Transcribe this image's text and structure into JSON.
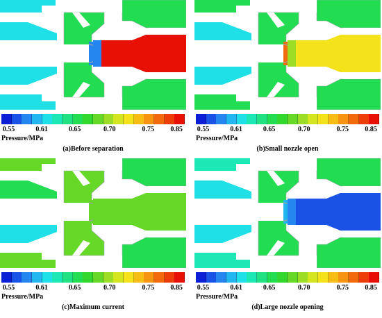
{
  "colors": {
    "background": "#ffffff",
    "outline": "#9aa0a6",
    "colorbar": [
      "#0d1fd6",
      "#1a52e6",
      "#2486ee",
      "#22b7f0",
      "#1ee0e6",
      "#1be8b4",
      "#20e283",
      "#22dd52",
      "#33d82e",
      "#66d828",
      "#9ddd25",
      "#d5e51f",
      "#f4e31a",
      "#f8bd14",
      "#f79410",
      "#f36a0c",
      "#ee3d08",
      "#e81005"
    ]
  },
  "colorbar": {
    "ticks": [
      {
        "label": "0.55",
        "frac": 0.04
      },
      {
        "label": "0.61",
        "frac": 0.22
      },
      {
        "label": "0.65",
        "frac": 0.4
      },
      {
        "label": "0.70",
        "frac": 0.59
      },
      {
        "label": "0.75",
        "frac": 0.8
      },
      {
        "label": "0.85",
        "frac": 0.955
      }
    ],
    "unit_label": "Pressure/MPa"
  },
  "panels": [
    {
      "caption": "(a)Before separation",
      "fields": {
        "bg": "#20e283",
        "tube": "#ffffff",
        "upper": "#1ee0e6",
        "lower": "#1ee0e6",
        "body": "#22dd52",
        "throat": "#2486ee",
        "outlet_main": "#e81005",
        "outlet_ring": "#2486ee",
        "right_blocks": "#22dd52",
        "left_blocks": "#1ee0e6"
      }
    },
    {
      "caption": "(b)Small nozzle open",
      "fields": {
        "bg": "#20e283",
        "tube": "#ffffff",
        "upper": "#1ee0e6",
        "lower": "#1ee0e6",
        "body": "#22dd52",
        "throat": "#f36a0c",
        "outlet_main": "#f4e31a",
        "outlet_ring": "#9ddd25",
        "right_blocks": "#22dd52",
        "left_blocks": "#22dd52"
      }
    },
    {
      "caption": "(c)Maximum current",
      "fields": {
        "bg": "#66d828",
        "tube": "#ffffff",
        "upper": "#22dd52",
        "lower": "#1ee0e6",
        "body": "#66d828",
        "throat": "#66d828",
        "outlet_main": "#66d828",
        "outlet_ring": "#66d828",
        "right_blocks": "#22dd52",
        "left_blocks": "#66d828"
      }
    },
    {
      "caption": "(d)Large nozzle opening",
      "fields": {
        "bg": "#20e283",
        "tube": "#ffffff",
        "upper": "#1ee0e6",
        "lower": "#1ee0e6",
        "body": "#22dd52",
        "throat": "#22b7f0",
        "outlet_main": "#1a52e6",
        "outlet_ring": "#2486ee",
        "right_blocks": "#22dd52",
        "left_blocks": "#1be8b4"
      }
    }
  ]
}
